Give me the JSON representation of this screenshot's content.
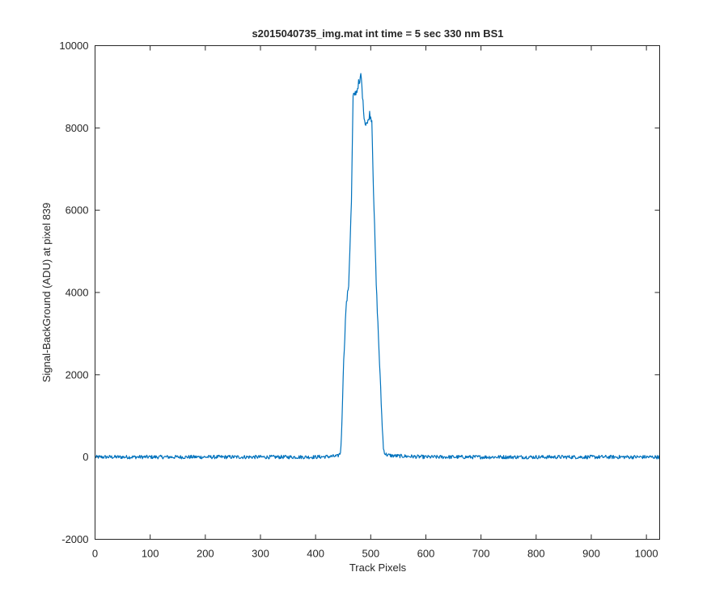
{
  "chart_data": {
    "type": "line",
    "title": "s2015040735_img.mat int time = 5 sec  330 nm BS1",
    "xlabel": "Track Pixels",
    "ylabel": "Signal-BackGround (ADU) at pixel 839",
    "xlim": [
      0,
      1024
    ],
    "ylim": [
      -2000,
      10000
    ],
    "xticks": [
      0,
      100,
      200,
      300,
      400,
      500,
      600,
      700,
      800,
      900,
      1000
    ],
    "yticks": [
      -2000,
      0,
      2000,
      4000,
      6000,
      8000,
      10000
    ],
    "xtick_labels": [
      "0",
      "100",
      "200",
      "300",
      "400",
      "500",
      "600",
      "700",
      "800",
      "900",
      "1000"
    ],
    "ytick_labels": [
      "-2000",
      "0",
      "2000",
      "4000",
      "6000",
      "8000",
      "10000"
    ],
    "grid": false,
    "legend": "none",
    "series": [
      {
        "color": "#0072BD",
        "x": [
          0,
          100,
          200,
          300,
          400,
          440,
          445,
          447,
          450,
          455,
          460,
          465,
          468,
          470,
          472,
          475,
          478,
          480,
          482,
          484,
          486,
          488,
          490,
          492,
          494,
          496,
          498,
          500,
          502,
          505,
          510,
          515,
          520,
          523,
          526,
          530,
          540,
          600,
          700,
          800,
          900,
          1024
        ],
        "y": [
          0,
          0,
          0,
          0,
          0,
          20,
          100,
          500,
          2000,
          3600,
          4200,
          6200,
          8750,
          8800,
          8850,
          8900,
          9100,
          9050,
          9330,
          9000,
          8600,
          8300,
          8100,
          8150,
          8100,
          8200,
          8350,
          8250,
          8200,
          6500,
          4200,
          2600,
          1000,
          200,
          80,
          50,
          30,
          0,
          0,
          0,
          0,
          0
        ]
      }
    ]
  }
}
